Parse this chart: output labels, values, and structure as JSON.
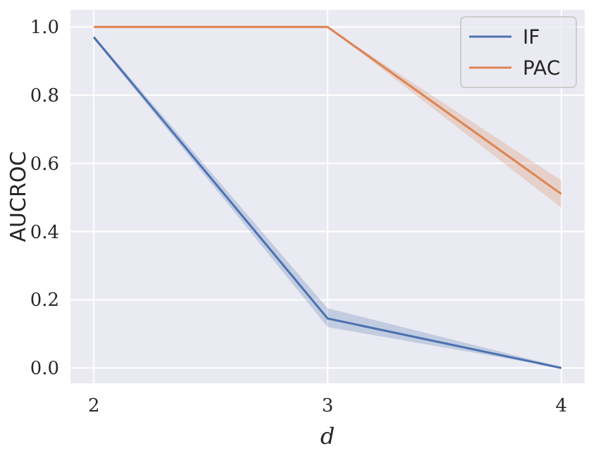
{
  "chart_data": {
    "type": "line",
    "xlabel": "d",
    "ylabel": "AUCROC",
    "x": [
      2,
      3,
      4
    ],
    "series": [
      {
        "name": "IF",
        "color": "#4c72b0",
        "values": [
          0.97,
          0.145,
          0.0
        ],
        "lower": [
          0.965,
          0.12,
          0.0
        ],
        "upper": [
          0.975,
          0.175,
          0.003
        ]
      },
      {
        "name": "PAC",
        "color": "#dd8452",
        "values": [
          1.0,
          1.0,
          0.51
        ],
        "lower": [
          1.0,
          1.0,
          0.47
        ],
        "upper": [
          1.0,
          1.0,
          0.55
        ]
      }
    ],
    "xlim": [
      1.9,
      4.1
    ],
    "ylim": [
      -0.045,
      1.05
    ],
    "xticks": [
      2,
      3,
      4
    ],
    "yticks": [
      {
        "value": 0,
        "label": "0.0"
      },
      {
        "value": 0.2,
        "label": "0.2"
      },
      {
        "value": 0.4,
        "label": "0.4"
      },
      {
        "value": 0.6,
        "label": "0.6"
      },
      {
        "value": 0.8,
        "label": "0.8"
      },
      {
        "value": 1,
        "label": "1.0"
      }
    ],
    "grid": true,
    "legend": "top right",
    "marker": "none",
    "line_style": "solid"
  }
}
